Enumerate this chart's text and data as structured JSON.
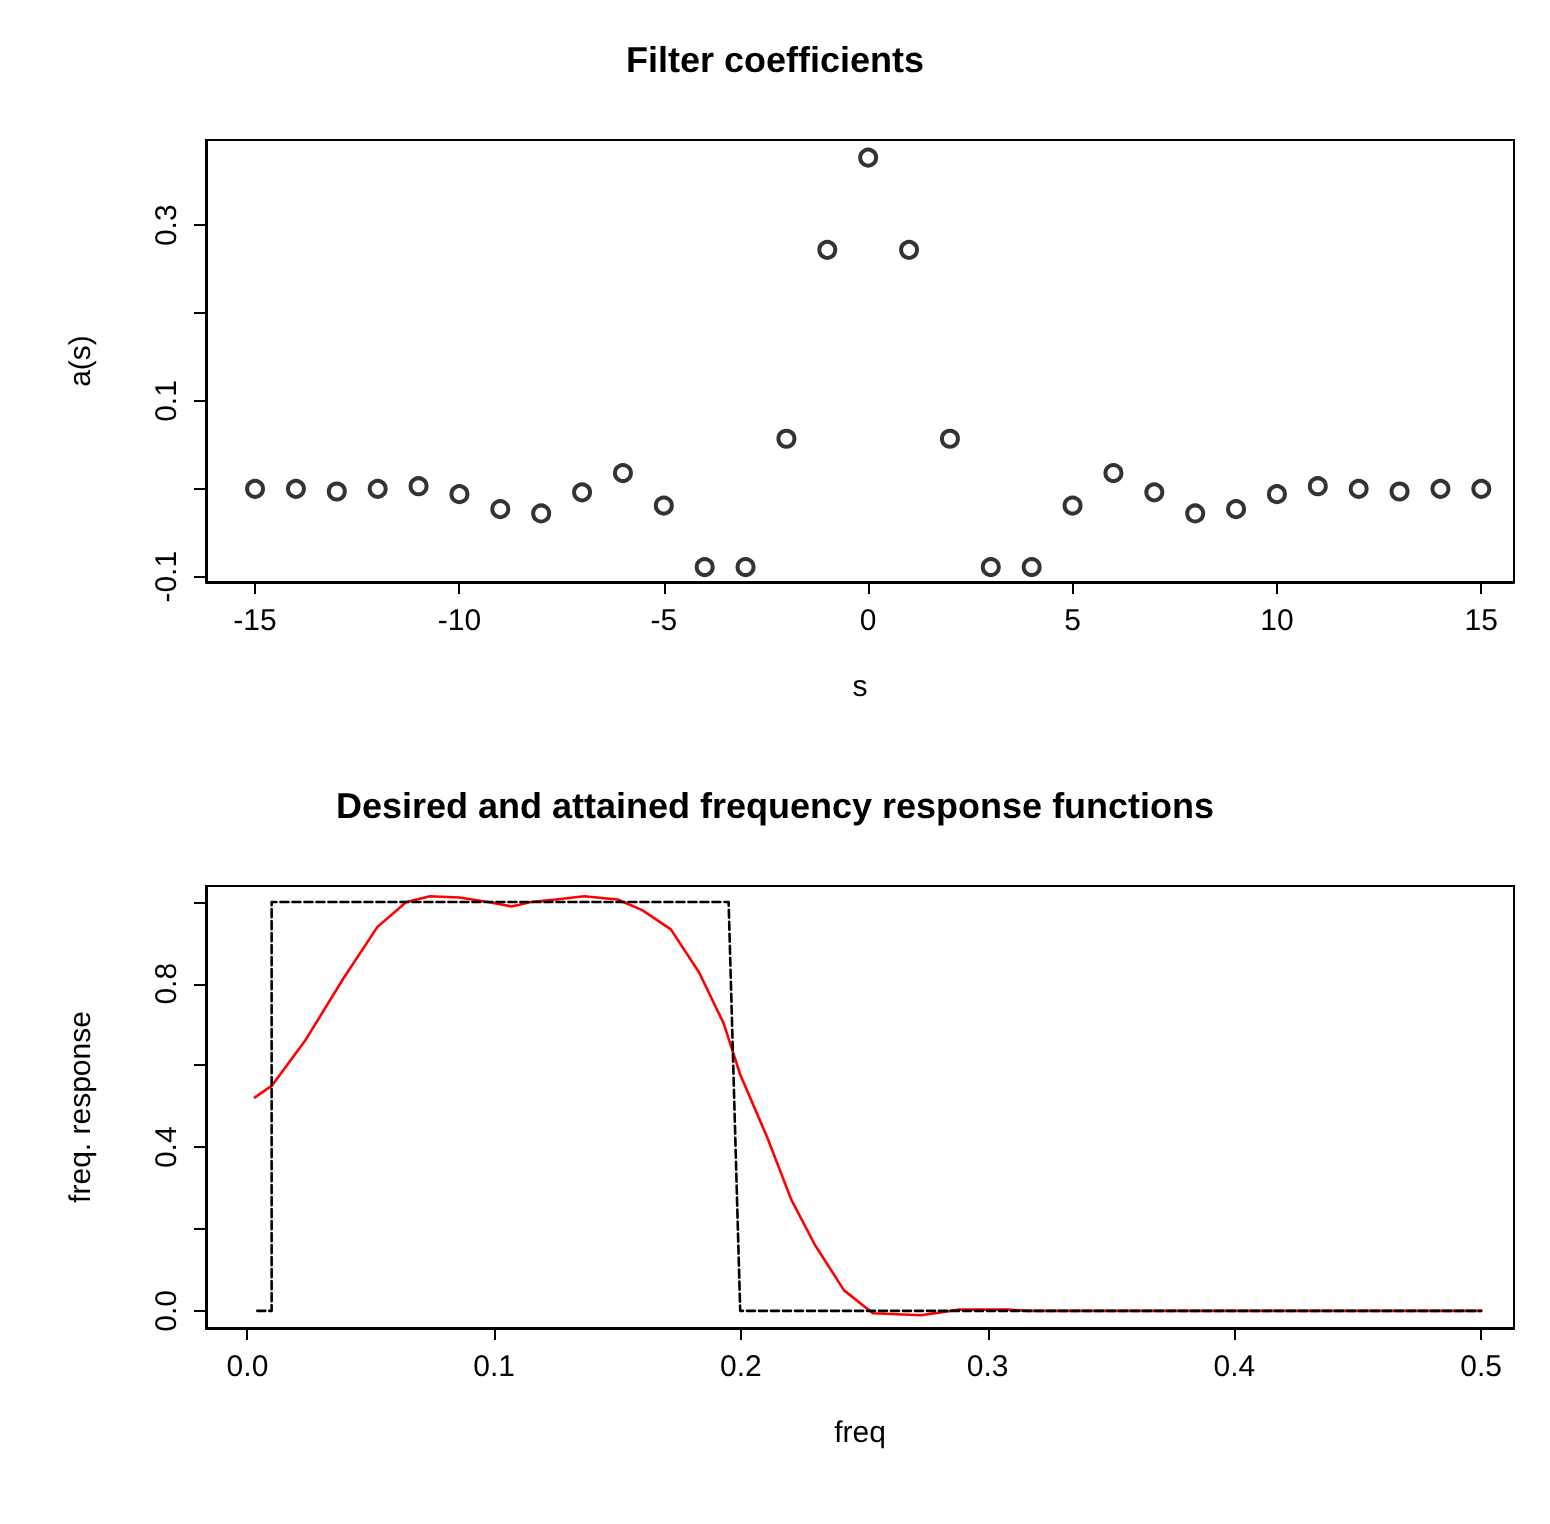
{
  "chart_data": [
    {
      "type": "scatter",
      "title": "Filter coefficients",
      "xlabel": "s",
      "ylabel": "a(s)",
      "marker": "circle",
      "grid": false,
      "x": [
        -15,
        -14,
        -13,
        -12,
        -11,
        -10,
        -9,
        -8,
        -7,
        -6,
        -5,
        -4,
        -3,
        -2,
        -1,
        0,
        1,
        2,
        3,
        4,
        5,
        6,
        7,
        8,
        9,
        10,
        11,
        12,
        13,
        14,
        15
      ],
      "series": [
        {
          "color": "#000000",
          "values": [
            0.0,
            0.0,
            -0.003,
            0.0,
            0.003,
            -0.006,
            -0.023,
            -0.028,
            -0.004,
            0.018,
            -0.019,
            -0.089,
            -0.089,
            0.057,
            0.272,
            0.377,
            0.272,
            0.057,
            -0.089,
            -0.089,
            -0.019,
            0.018,
            -0.004,
            -0.028,
            -0.023,
            -0.006,
            0.003,
            0.0,
            -0.003,
            0.0,
            0.0
          ]
        }
      ],
      "xlim": [
        -16.2,
        15.8
      ],
      "xticks": [
        -15,
        -10,
        -5,
        0,
        5,
        10,
        15
      ],
      "ylim": [
        -0.106,
        0.397
      ],
      "yticks": [
        -0.1,
        {
          "value": 0,
          "label": null
        },
        0.1,
        {
          "value": 0.2,
          "label": null
        },
        0.3
      ]
    },
    {
      "type": "line",
      "title": "Desired and attained frequency response functions",
      "xlabel": "freq",
      "ylabel": "freq. response",
      "marker": "none",
      "grid": false,
      "series": [
        {
          "color": "#000000",
          "line_style": "dashed",
          "x": [
            0.004,
            0.0098,
            0.0098,
            0.195,
            0.1997,
            0.5
          ],
          "values": [
            0,
            0,
            1,
            1,
            0,
            0
          ]
        },
        {
          "color": "#ff0000",
          "line_style": "solid",
          "x": [
            0.003,
            0.0098,
            0.0234,
            0.039,
            0.0527,
            0.0644,
            0.074,
            0.0858,
            0.0975,
            0.107,
            0.115,
            0.125,
            0.1365,
            0.15,
            0.16,
            0.1716,
            0.183,
            0.193,
            0.1997,
            0.2106,
            0.2204,
            0.23,
            0.2418,
            0.2535,
            0.273,
            0.2886,
            0.308,
            0.316,
            0.5
          ],
          "values": [
            0.522,
            0.55,
            0.661,
            0.814,
            0.939,
            1.0,
            1.014,
            1.011,
            1.0,
            0.989,
            1.0,
            1.006,
            1.014,
            1.006,
            0.98,
            0.933,
            0.828,
            0.703,
            0.578,
            0.425,
            0.272,
            0.161,
            0.05,
            -0.006,
            -0.011,
            0.003,
            0.003,
            0,
            0
          ]
        }
      ],
      "xlim": [
        -0.0168,
        0.5133
      ],
      "xticks": [
        {
          "value": 0,
          "label": "0.0"
        },
        0.1,
        0.2,
        0.3,
        0.4,
        0.5
      ],
      "ylim": [
        -0.042,
        1.039
      ],
      "yticks": [
        {
          "value": 0,
          "label": "0.0"
        },
        {
          "value": 0.2,
          "label": null
        },
        0.4,
        {
          "value": 0.6,
          "label": null
        },
        0.8,
        {
          "value": 1.0,
          "label": null
        }
      ]
    }
  ]
}
